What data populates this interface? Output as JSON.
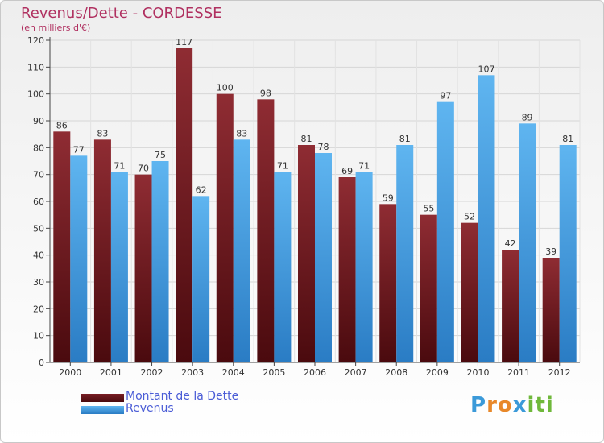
{
  "chart_data": {
    "type": "bar",
    "title": "Revenus/Dette - CORDESSE",
    "subtitle": "(en milliers d'€)",
    "categories": [
      "2000",
      "2001",
      "2002",
      "2003",
      "2004",
      "2005",
      "2006",
      "2007",
      "2008",
      "2009",
      "2010",
      "2011",
      "2012"
    ],
    "series": [
      {
        "name": "Montant de la Dette",
        "color": "#7a1f25",
        "values": [
          86,
          83,
          70,
          117,
          100,
          98,
          81,
          69,
          59,
          55,
          52,
          42,
          39
        ]
      },
      {
        "name": "Revenus",
        "color": "#3f9be0",
        "values": [
          77,
          71,
          75,
          62,
          83,
          71,
          78,
          71,
          81,
          97,
          107,
          89,
          81
        ]
      }
    ],
    "ylim": [
      0,
      120
    ],
    "yticks": [
      0,
      10,
      20,
      30,
      40,
      50,
      60,
      70,
      80,
      90,
      100,
      110,
      120
    ],
    "grid": true,
    "legend_position": "bottom-left"
  },
  "logo": {
    "letters": [
      {
        "ch": "P",
        "color": "#3b9ad9"
      },
      {
        "ch": "r",
        "color": "#e8882a"
      },
      {
        "ch": "o",
        "color": "#e8882a"
      },
      {
        "ch": "x",
        "color": "#3b9ad9"
      },
      {
        "ch": "i",
        "color": "#6fb83a"
      },
      {
        "ch": "t",
        "color": "#6fb83a"
      },
      {
        "ch": "i",
        "color": "#6fb83a"
      }
    ]
  }
}
